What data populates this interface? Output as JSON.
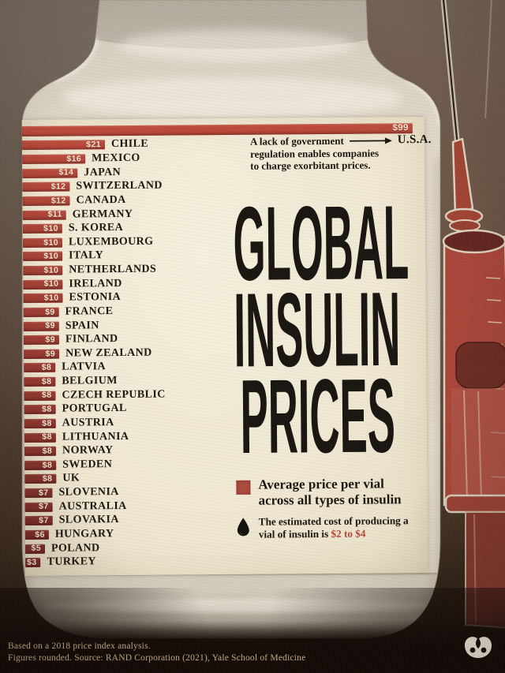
{
  "title_lines": [
    "GLOBAL",
    "INSULIN",
    "PRICES"
  ],
  "annotation": {
    "line1": "A lack of government",
    "target": "U.S.A.",
    "line2": "regulation enables companies",
    "line3": "to charge exorbitant prices."
  },
  "legend": {
    "average_label": "Average price per vial across all types of insulin",
    "production_prefix": "The estimated cost of producing a vial of insulin is",
    "production_cost": "$2 to $4"
  },
  "footer": {
    "line1": "Based on a 2018 price index analysis.",
    "line2": "Figures rounded. Source: RAND Corporation (2021), Yale School of Medicine"
  },
  "icons": {
    "arrow_right_icon": "long right arrow",
    "blood_drop_icon": "black teardrop",
    "legend_swatch_icon": "red square",
    "publisher_logo_icon": "white circular emblem"
  },
  "colors": {
    "bar_red_bright": "#b8483a",
    "bar_red_dark": "#7a2c27",
    "label_cream": "#f0e9d5",
    "ink": "#1b1510",
    "price_text": "#f3e8d2",
    "cost_highlight": "#b5463a",
    "footer_text": "#c9b28c"
  },
  "chart_data": {
    "type": "bar",
    "orientation": "horizontal",
    "title": "Global Insulin Prices",
    "unit": "USD, average price per vial across all types of insulin",
    "x_max": 99,
    "rows": [
      {
        "country": "U.S.A.",
        "value": 99,
        "label": "$99"
      },
      {
        "country": "CHILE",
        "value": 21,
        "label": "$21"
      },
      {
        "country": "MEXICO",
        "value": 16,
        "label": "$16"
      },
      {
        "country": "JAPAN",
        "value": 14,
        "label": "$14"
      },
      {
        "country": "SWITZERLAND",
        "value": 12,
        "label": "$12"
      },
      {
        "country": "CANADA",
        "value": 12,
        "label": "$12"
      },
      {
        "country": "GERMANY",
        "value": 11,
        "label": "$11"
      },
      {
        "country": "S. KOREA",
        "value": 10,
        "label": "$10"
      },
      {
        "country": "LUXEMBOURG",
        "value": 10,
        "label": "$10"
      },
      {
        "country": "ITALY",
        "value": 10,
        "label": "$10"
      },
      {
        "country": "NETHERLANDS",
        "value": 10,
        "label": "$10"
      },
      {
        "country": "IRELAND",
        "value": 10,
        "label": "$10"
      },
      {
        "country": "ESTONIA",
        "value": 10,
        "label": "$10"
      },
      {
        "country": "FRANCE",
        "value": 9,
        "label": "$9"
      },
      {
        "country": "SPAIN",
        "value": 9,
        "label": "$9"
      },
      {
        "country": "FINLAND",
        "value": 9,
        "label": "$9"
      },
      {
        "country": "NEW ZEALAND",
        "value": 9,
        "label": "$9"
      },
      {
        "country": "LATVIA",
        "value": 8,
        "label": "$8"
      },
      {
        "country": "BELGIUM",
        "value": 8,
        "label": "$8"
      },
      {
        "country": "CZECH REPUBLIC",
        "value": 8,
        "label": "$8"
      },
      {
        "country": "PORTUGAL",
        "value": 8,
        "label": "$8"
      },
      {
        "country": "AUSTRIA",
        "value": 8,
        "label": "$8"
      },
      {
        "country": "LITHUANIA",
        "value": 8,
        "label": "$8"
      },
      {
        "country": "NORWAY",
        "value": 8,
        "label": "$8"
      },
      {
        "country": "SWEDEN",
        "value": 8,
        "label": "$8"
      },
      {
        "country": "UK",
        "value": 8,
        "label": "$8"
      },
      {
        "country": "SLOVENIA",
        "value": 7,
        "label": "$7"
      },
      {
        "country": "AUSTRALIA",
        "value": 7,
        "label": "$7"
      },
      {
        "country": "SLOVAKIA",
        "value": 7,
        "label": "$7"
      },
      {
        "country": "HUNGARY",
        "value": 6,
        "label": "$6"
      },
      {
        "country": "POLAND",
        "value": 5,
        "label": "$5"
      },
      {
        "country": "TURKEY",
        "value": 3,
        "label": "$3"
      }
    ]
  }
}
